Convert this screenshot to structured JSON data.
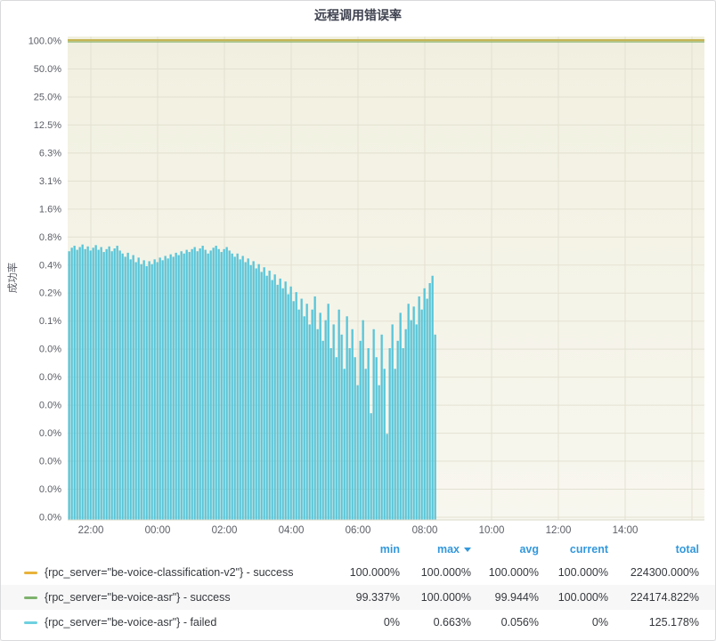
{
  "panel": {
    "title": "远程调用错误率"
  },
  "yaxis": {
    "label": "成功率"
  },
  "legend": {
    "headers": {
      "min": "min",
      "max": "max",
      "avg": "avg",
      "current": "current",
      "total": "total"
    },
    "sort_column": "max",
    "rows": [
      {
        "color": "#e8b23a",
        "label": "{rpc_server=\"be-voice-classification-v2\"} - success",
        "min": "100.000%",
        "max": "100.000%",
        "avg": "100.000%",
        "current": "100.000%",
        "total": "224300.000%"
      },
      {
        "color": "#7eb26d",
        "label": "{rpc_server=\"be-voice-asr\"} - success",
        "min": "99.337%",
        "max": "100.000%",
        "avg": "99.944%",
        "current": "100.000%",
        "total": "224174.822%"
      },
      {
        "color": "#6ed0e0",
        "label": "{rpc_server=\"be-voice-asr\"} - failed",
        "min": "0%",
        "max": "0.663%",
        "avg": "0.056%",
        "current": "0%",
        "total": "125.178%"
      }
    ]
  },
  "chart_data": {
    "type": "bar",
    "title": "远程调用错误率",
    "ylabel": "成功率",
    "y_scale": "log2",
    "grid": true,
    "y_ticks": [
      "100.0%",
      "50.0%",
      "25.0%",
      "12.5%",
      "6.3%",
      "3.1%",
      "1.6%",
      "0.8%",
      "0.4%",
      "0.2%",
      "0.1%",
      "0.0%",
      "0.0%",
      "0.0%",
      "0.0%",
      "0.0%",
      "0.0%",
      "0.0%"
    ],
    "y_tick_values": [
      100,
      50,
      25,
      12.5,
      6.3,
      3.1,
      1.6,
      0.8,
      0.4,
      0.2,
      0.1,
      0.05,
      0.025,
      0.012,
      0.006,
      0.003,
      0.0016,
      0.0008
    ],
    "x_ticks": [
      "22:00",
      "00:00",
      "02:00",
      "04:00",
      "06:00",
      "08:00",
      "10:00",
      "12:00",
      "14:00"
    ],
    "series": [
      {
        "name": "{rpc_server=\"be-voice-classification-v2\"} - success",
        "type": "line",
        "color": "#c6b654",
        "value_percent": 100,
        "note": "flat line at 100% across full range"
      },
      {
        "name": "{rpc_server=\"be-voice-asr\"} - success",
        "type": "line",
        "color": "#7eb26d",
        "value_percent_approx": 99.944,
        "note": "visually coincides with 100% line"
      },
      {
        "name": "{rpc_server=\"be-voice-asr\"} - failed",
        "type": "bar",
        "color": "#58c5d8",
        "start_time": "21:18",
        "end_time": "08:21",
        "values_percent": [
          0.55,
          0.6,
          0.63,
          0.57,
          0.61,
          0.65,
          0.58,
          0.62,
          0.56,
          0.6,
          0.64,
          0.57,
          0.61,
          0.54,
          0.58,
          0.62,
          0.55,
          0.59,
          0.63,
          0.56,
          0.52,
          0.48,
          0.53,
          0.45,
          0.5,
          0.42,
          0.47,
          0.4,
          0.44,
          0.38,
          0.43,
          0.4,
          0.45,
          0.42,
          0.47,
          0.44,
          0.49,
          0.46,
          0.51,
          0.48,
          0.53,
          0.5,
          0.55,
          0.52,
          0.57,
          0.54,
          0.58,
          0.61,
          0.55,
          0.59,
          0.63,
          0.57,
          0.52,
          0.56,
          0.6,
          0.63,
          0.58,
          0.54,
          0.58,
          0.61,
          0.56,
          0.52,
          0.48,
          0.52,
          0.45,
          0.49,
          0.42,
          0.46,
          0.39,
          0.43,
          0.36,
          0.4,
          0.33,
          0.37,
          0.3,
          0.34,
          0.27,
          0.31,
          0.24,
          0.28,
          0.22,
          0.26,
          0.19,
          0.23,
          0.16,
          0.2,
          0.13,
          0.17,
          0.11,
          0.15,
          0.09,
          0.13,
          0.18,
          0.08,
          0.12,
          0.06,
          0.1,
          0.15,
          0.05,
          0.09,
          0.04,
          0.13,
          0.07,
          0.03,
          0.11,
          0.05,
          0.08,
          0.04,
          0.02,
          0.06,
          0.1,
          0.03,
          0.05,
          0.01,
          0.08,
          0.04,
          0.02,
          0.07,
          0.03,
          0.006,
          0.05,
          0.09,
          0.03,
          0.06,
          0.12,
          0.05,
          0.08,
          0.15,
          0.1,
          0.14,
          0.09,
          0.18,
          0.13,
          0.22,
          0.17,
          0.25,
          0.3,
          0.07
        ]
      }
    ]
  },
  "colors": {
    "plot_bg_top": "#f1f0e0",
    "plot_bg_bottom": "#f8f7ef",
    "grid_line": "#e3e1d1",
    "axis_text": "#5b5e66",
    "bar": "#58c5d8",
    "top_line": "#c6b654",
    "legend_header": "#3398dc"
  }
}
